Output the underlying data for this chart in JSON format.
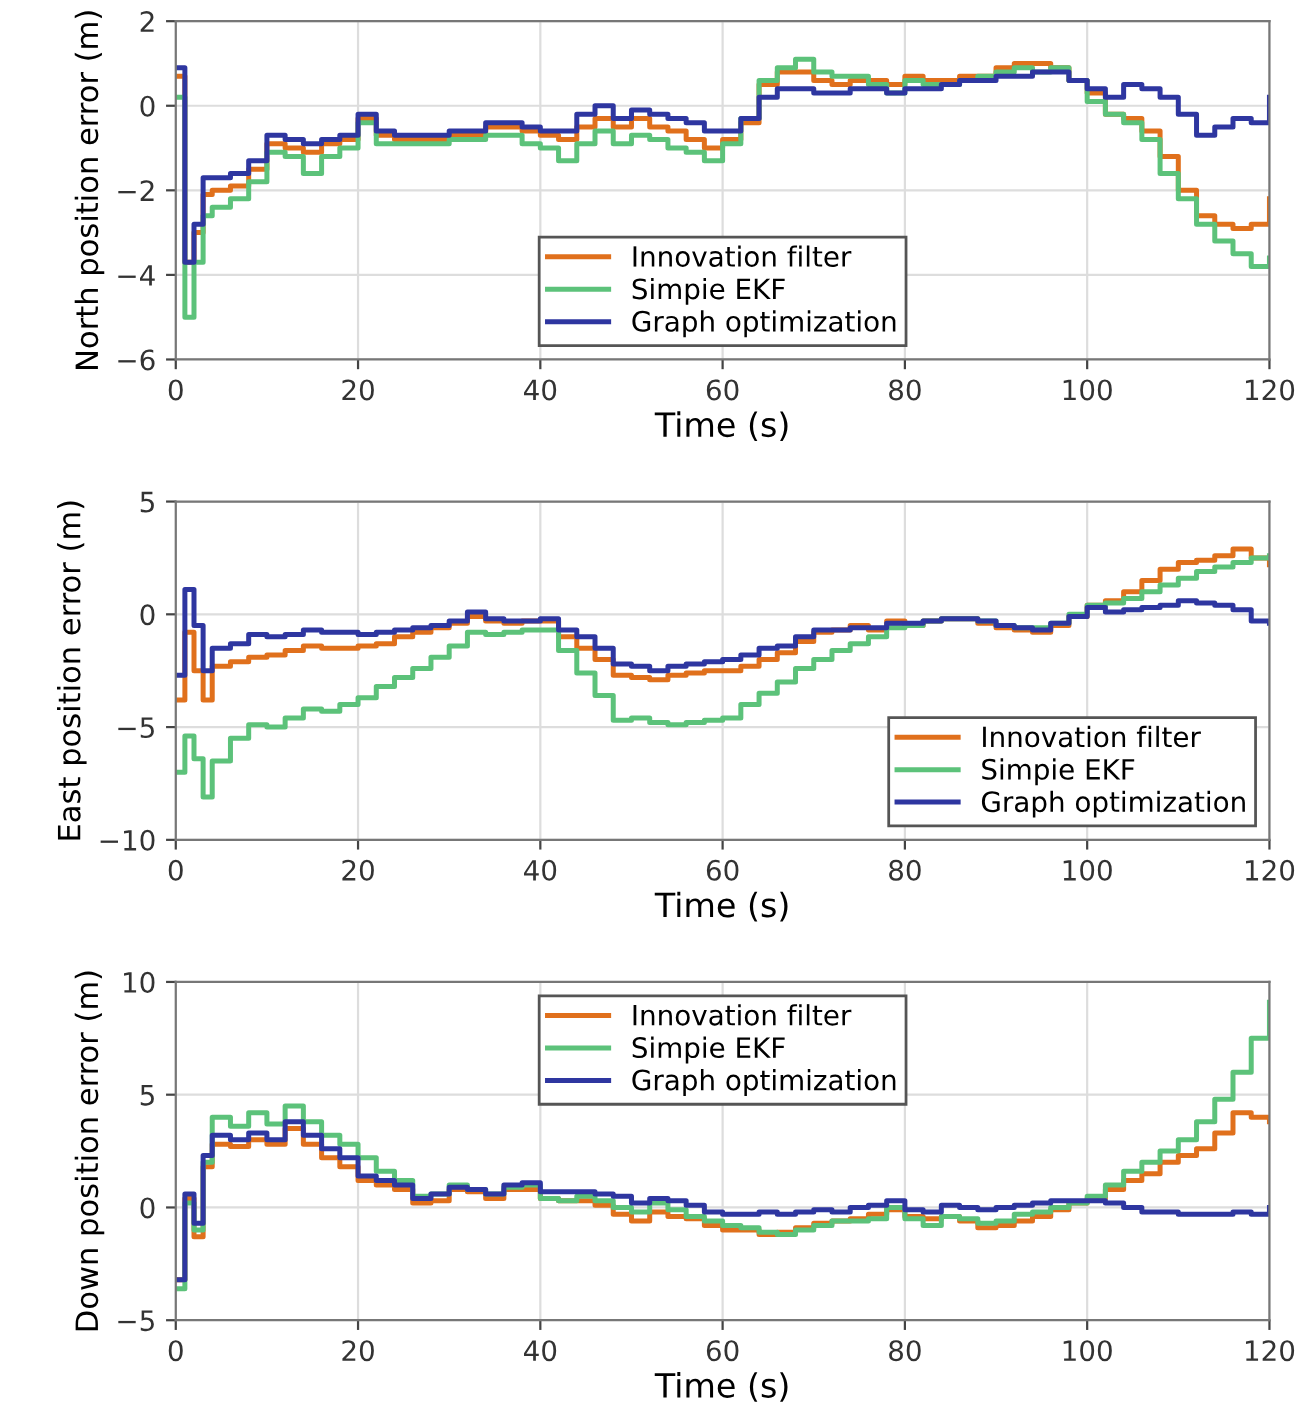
{
  "chart_data": [
    {
      "type": "step",
      "xlabel": "Time (s)",
      "ylabel": "North position error (m)",
      "xlim": [
        0,
        120
      ],
      "xticks": [
        0,
        20,
        40,
        60,
        80,
        100,
        120
      ],
      "ylim": [
        -6,
        2
      ],
      "yticks": [
        -6,
        -4,
        -2,
        0,
        2
      ],
      "grid": true,
      "legend": "bottom",
      "x": [
        0,
        1,
        2,
        3,
        4,
        6,
        8,
        10,
        12,
        14,
        16,
        18,
        20,
        22,
        24,
        26,
        28,
        30,
        32,
        34,
        36,
        38,
        40,
        42,
        44,
        46,
        48,
        50,
        52,
        54,
        56,
        58,
        60,
        62,
        64,
        66,
        68,
        70,
        72,
        74,
        76,
        78,
        80,
        82,
        84,
        86,
        88,
        90,
        92,
        94,
        96,
        98,
        100,
        102,
        104,
        106,
        108,
        110,
        112,
        114,
        116,
        118,
        120
      ],
      "series": [
        {
          "name": "Innovation filter",
          "color": "#e0701c",
          "values": [
            0.7,
            -3.7,
            -3.0,
            -2.1,
            -2.0,
            -1.9,
            -1.5,
            -0.9,
            -1.0,
            -1.1,
            -0.9,
            -0.8,
            -0.3,
            -0.7,
            -0.8,
            -0.8,
            -0.8,
            -0.7,
            -0.7,
            -0.5,
            -0.5,
            -0.6,
            -0.7,
            -0.8,
            -0.5,
            -0.3,
            -0.5,
            -0.3,
            -0.5,
            -0.6,
            -0.8,
            -1.0,
            -0.8,
            -0.4,
            0.5,
            0.8,
            0.8,
            0.6,
            0.5,
            0.6,
            0.6,
            0.5,
            0.7,
            0.6,
            0.6,
            0.7,
            0.7,
            0.9,
            1.0,
            1.0,
            0.9,
            0.6,
            0.3,
            -0.2,
            -0.3,
            -0.6,
            -1.2,
            -2.0,
            -2.6,
            -2.8,
            -2.9,
            -2.8,
            -2.2
          ]
        },
        {
          "name": "Simpie EKF",
          "color": "#5cc27a",
          "values": [
            0.2,
            -5.0,
            -3.7,
            -2.6,
            -2.4,
            -2.2,
            -1.8,
            -1.1,
            -1.2,
            -1.6,
            -1.2,
            -1.0,
            -0.4,
            -0.9,
            -0.9,
            -0.9,
            -0.9,
            -0.8,
            -0.8,
            -0.7,
            -0.7,
            -0.9,
            -1.0,
            -1.3,
            -0.9,
            -0.6,
            -0.9,
            -0.7,
            -0.8,
            -1.0,
            -1.1,
            -1.3,
            -0.9,
            -0.3,
            0.6,
            0.9,
            1.1,
            0.8,
            0.7,
            0.7,
            0.5,
            0.3,
            0.6,
            0.5,
            0.5,
            0.6,
            0.7,
            0.8,
            0.9,
            0.8,
            0.9,
            0.6,
            0.1,
            -0.2,
            -0.4,
            -0.8,
            -1.6,
            -2.2,
            -2.8,
            -3.2,
            -3.5,
            -3.8,
            -3.6
          ]
        },
        {
          "name": "Graph optimization",
          "color": "#2e36a0",
          "values": [
            0.9,
            -3.7,
            -2.8,
            -1.7,
            -1.7,
            -1.6,
            -1.3,
            -0.7,
            -0.8,
            -0.9,
            -0.8,
            -0.7,
            -0.2,
            -0.6,
            -0.7,
            -0.7,
            -0.7,
            -0.6,
            -0.6,
            -0.4,
            -0.4,
            -0.5,
            -0.6,
            -0.6,
            -0.2,
            0.0,
            -0.3,
            -0.1,
            -0.2,
            -0.3,
            -0.4,
            -0.6,
            -0.6,
            -0.3,
            0.2,
            0.4,
            0.4,
            0.3,
            0.3,
            0.4,
            0.4,
            0.3,
            0.4,
            0.4,
            0.5,
            0.6,
            0.6,
            0.7,
            0.7,
            0.8,
            0.8,
            0.6,
            0.4,
            0.2,
            0.5,
            0.4,
            0.2,
            -0.2,
            -0.7,
            -0.5,
            -0.3,
            -0.4,
            0.2
          ]
        }
      ]
    },
    {
      "type": "step",
      "xlabel": "Time (s)",
      "ylabel": "East position error (m)",
      "xlim": [
        0,
        120
      ],
      "xticks": [
        0,
        20,
        40,
        60,
        80,
        100,
        120
      ],
      "ylim": [
        -10,
        5
      ],
      "yticks": [
        -10,
        -5,
        0,
        5
      ],
      "grid": true,
      "legend": "bottom right",
      "x": [
        0,
        1,
        2,
        3,
        4,
        6,
        8,
        10,
        12,
        14,
        16,
        18,
        20,
        22,
        24,
        26,
        28,
        30,
        32,
        34,
        36,
        38,
        40,
        42,
        44,
        46,
        48,
        50,
        52,
        54,
        56,
        58,
        60,
        62,
        64,
        66,
        68,
        70,
        72,
        74,
        76,
        78,
        80,
        82,
        84,
        86,
        88,
        90,
        92,
        94,
        96,
        98,
        100,
        102,
        104,
        106,
        108,
        110,
        112,
        114,
        116,
        118,
        120
      ],
      "series": [
        {
          "name": "Innovation filter",
          "color": "#e0701c",
          "values": [
            -3.8,
            -0.8,
            -2.5,
            -3.8,
            -2.3,
            -2.1,
            -1.9,
            -1.8,
            -1.6,
            -1.4,
            -1.5,
            -1.5,
            -1.4,
            -1.3,
            -1.0,
            -0.8,
            -0.6,
            -0.4,
            -0.1,
            -0.3,
            -0.4,
            -0.3,
            -0.3,
            -1.0,
            -1.5,
            -2.0,
            -2.7,
            -2.8,
            -2.9,
            -2.7,
            -2.6,
            -2.5,
            -2.5,
            -2.3,
            -2.0,
            -1.7,
            -1.2,
            -0.8,
            -0.7,
            -0.5,
            -0.7,
            -0.3,
            -0.5,
            -0.3,
            -0.2,
            -0.2,
            -0.4,
            -0.6,
            -0.7,
            -0.8,
            -0.5,
            -0.1,
            0.4,
            0.6,
            1.0,
            1.5,
            2.0,
            2.3,
            2.4,
            2.6,
            2.9,
            2.5,
            2.2
          ]
        },
        {
          "name": "Simpie EKF",
          "color": "#5cc27a",
          "values": [
            -7.0,
            -5.4,
            -6.4,
            -8.1,
            -6.5,
            -5.5,
            -4.9,
            -5.0,
            -4.6,
            -4.2,
            -4.3,
            -4.0,
            -3.7,
            -3.2,
            -2.8,
            -2.4,
            -1.9,
            -1.4,
            -0.8,
            -0.9,
            -0.8,
            -0.7,
            -0.7,
            -1.6,
            -2.6,
            -3.6,
            -4.7,
            -4.6,
            -4.8,
            -4.9,
            -4.8,
            -4.7,
            -4.6,
            -4.0,
            -3.5,
            -3.0,
            -2.4,
            -2.0,
            -1.6,
            -1.3,
            -1.0,
            -0.6,
            -0.5,
            -0.3,
            -0.2,
            -0.2,
            -0.3,
            -0.5,
            -0.6,
            -0.6,
            -0.4,
            0.0,
            0.4,
            0.5,
            0.7,
            1.0,
            1.3,
            1.6,
            1.9,
            2.1,
            2.3,
            2.5,
            2.6
          ]
        },
        {
          "name": "Graph optimization",
          "color": "#2e36a0",
          "values": [
            -2.7,
            1.1,
            -0.5,
            -2.5,
            -1.5,
            -1.3,
            -0.9,
            -1.0,
            -0.9,
            -0.7,
            -0.8,
            -0.8,
            -0.9,
            -0.8,
            -0.7,
            -0.6,
            -0.5,
            -0.3,
            0.1,
            -0.2,
            -0.3,
            -0.3,
            -0.2,
            -0.7,
            -1.0,
            -1.5,
            -2.2,
            -2.3,
            -2.5,
            -2.3,
            -2.2,
            -2.1,
            -2.0,
            -1.8,
            -1.5,
            -1.4,
            -1.0,
            -0.7,
            -0.7,
            -0.6,
            -0.6,
            -0.4,
            -0.4,
            -0.3,
            -0.2,
            -0.2,
            -0.3,
            -0.5,
            -0.6,
            -0.7,
            -0.4,
            -0.1,
            0.3,
            0.1,
            0.2,
            0.3,
            0.4,
            0.6,
            0.5,
            0.4,
            0.2,
            -0.3,
            -0.4
          ]
        }
      ]
    },
    {
      "type": "step",
      "xlabel": "Time (s)",
      "ylabel": "Down position error (m)",
      "xlim": [
        0,
        120
      ],
      "xticks": [
        0,
        20,
        40,
        60,
        80,
        100,
        120
      ],
      "ylim": [
        -5,
        10
      ],
      "yticks": [
        -5,
        0,
        5,
        10
      ],
      "grid": true,
      "legend": "top",
      "x": [
        0,
        1,
        2,
        3,
        4,
        6,
        8,
        10,
        12,
        14,
        16,
        18,
        20,
        22,
        24,
        26,
        28,
        30,
        32,
        34,
        36,
        38,
        40,
        42,
        44,
        46,
        48,
        50,
        52,
        54,
        56,
        58,
        60,
        62,
        64,
        66,
        68,
        70,
        72,
        74,
        76,
        78,
        80,
        82,
        84,
        86,
        88,
        90,
        92,
        94,
        96,
        98,
        100,
        102,
        104,
        106,
        108,
        110,
        112,
        114,
        116,
        118,
        120
      ],
      "series": [
        {
          "name": "Innovation filter",
          "color": "#e0701c",
          "values": [
            -3.2,
            0.4,
            -1.3,
            1.8,
            2.8,
            2.7,
            3.0,
            2.8,
            3.5,
            2.8,
            2.2,
            1.8,
            1.2,
            1.0,
            0.8,
            0.2,
            0.3,
            0.8,
            0.7,
            0.4,
            0.8,
            0.8,
            0.4,
            0.3,
            0.3,
            0.1,
            -0.3,
            -0.6,
            -0.2,
            -0.4,
            -0.5,
            -0.8,
            -1.0,
            -1.0,
            -1.2,
            -1.1,
            -0.9,
            -0.7,
            -0.6,
            -0.5,
            -0.3,
            -0.1,
            -0.4,
            -0.5,
            -0.4,
            -0.6,
            -0.9,
            -0.8,
            -0.6,
            -0.4,
            -0.1,
            0.2,
            0.4,
            0.8,
            1.2,
            1.5,
            2.0,
            2.3,
            2.6,
            3.3,
            4.2,
            4.0,
            3.8
          ]
        },
        {
          "name": "Simpie EKF",
          "color": "#5cc27a",
          "values": [
            -3.6,
            0.2,
            -1.0,
            2.0,
            4.0,
            3.6,
            4.2,
            3.7,
            4.5,
            3.8,
            3.2,
            2.8,
            2.2,
            1.6,
            1.2,
            0.5,
            0.6,
            1.0,
            0.8,
            0.6,
            0.9,
            1.0,
            0.4,
            0.3,
            0.5,
            0.3,
            0.0,
            -0.2,
            0.2,
            -0.1,
            -0.4,
            -0.6,
            -0.8,
            -0.9,
            -1.1,
            -1.2,
            -1.0,
            -0.8,
            -0.6,
            -0.6,
            -0.5,
            0.0,
            -0.5,
            -0.8,
            -0.4,
            -0.5,
            -0.7,
            -0.6,
            -0.3,
            -0.2,
            0.0,
            0.2,
            0.5,
            1.0,
            1.6,
            2.0,
            2.5,
            3.0,
            3.8,
            4.8,
            6.0,
            7.5,
            9.1
          ]
        },
        {
          "name": "Graph optimization",
          "color": "#2e36a0",
          "values": [
            -3.2,
            0.6,
            -0.7,
            2.3,
            3.2,
            3.0,
            3.3,
            3.0,
            3.8,
            3.2,
            2.6,
            2.2,
            1.4,
            1.2,
            1.0,
            0.4,
            0.6,
            0.9,
            0.8,
            0.6,
            1.0,
            1.1,
            0.7,
            0.7,
            0.7,
            0.6,
            0.5,
            0.2,
            0.4,
            0.3,
            0.1,
            -0.2,
            -0.3,
            -0.3,
            -0.2,
            -0.3,
            -0.2,
            -0.1,
            -0.2,
            0.0,
            0.1,
            0.3,
            -0.1,
            -0.2,
            0.1,
            0.0,
            -0.1,
            0.0,
            0.1,
            0.2,
            0.3,
            0.3,
            0.3,
            0.2,
            0.0,
            -0.2,
            -0.2,
            -0.3,
            -0.3,
            -0.3,
            -0.2,
            -0.3,
            0.0
          ]
        }
      ]
    }
  ]
}
